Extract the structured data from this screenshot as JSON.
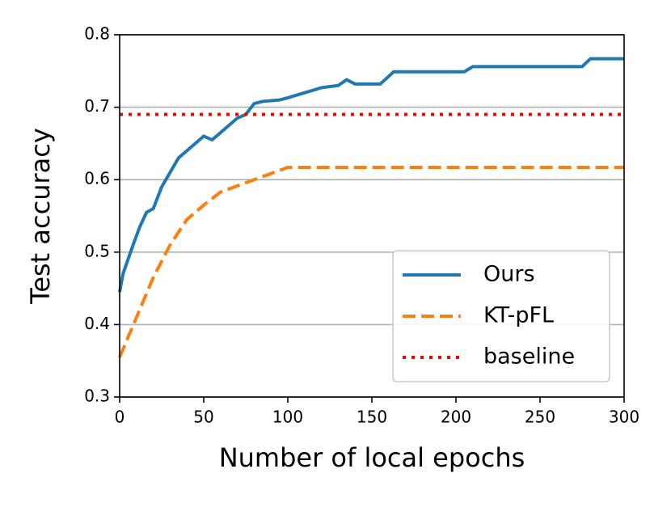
{
  "chart_data": {
    "type": "line",
    "xlabel": "Number of local epochs",
    "ylabel": "Test accuracy",
    "xlim": [
      0,
      300
    ],
    "ylim": [
      0.3,
      0.8
    ],
    "xticks": [
      0,
      50,
      100,
      150,
      200,
      250,
      300
    ],
    "yticks": [
      0.3,
      0.4,
      0.5,
      0.6,
      0.7,
      0.8
    ],
    "grid": "y",
    "legend": "lower right",
    "series": [
      {
        "name": "Ours",
        "color": "#1f77b4",
        "style": "solid",
        "x": [
          0,
          2,
          5,
          8,
          12,
          16,
          20,
          25,
          30,
          35,
          40,
          45,
          50,
          55,
          60,
          65,
          70,
          75,
          80,
          85,
          95,
          100,
          110,
          120,
          130,
          135,
          140,
          155,
          163,
          205,
          210,
          275,
          280,
          300
        ],
        "values": [
          0.445,
          0.47,
          0.49,
          0.51,
          0.535,
          0.555,
          0.56,
          0.59,
          0.61,
          0.63,
          0.64,
          0.65,
          0.66,
          0.655,
          0.665,
          0.675,
          0.685,
          0.69,
          0.705,
          0.708,
          0.71,
          0.713,
          0.72,
          0.727,
          0.73,
          0.738,
          0.732,
          0.732,
          0.749,
          0.749,
          0.756,
          0.756,
          0.767,
          0.767
        ]
      },
      {
        "name": "KT-pFL",
        "color": "#ff7f0e",
        "style": "dashed",
        "x": [
          0,
          10,
          20,
          30,
          40,
          50,
          60,
          80,
          100,
          300
        ],
        "values": [
          0.355,
          0.41,
          0.465,
          0.51,
          0.545,
          0.565,
          0.583,
          0.6,
          0.617,
          0.617
        ]
      },
      {
        "name": "baseline",
        "color": "#ff0000",
        "style": "dotted",
        "x": [
          0,
          300
        ],
        "values": [
          0.69,
          0.69
        ]
      }
    ]
  }
}
